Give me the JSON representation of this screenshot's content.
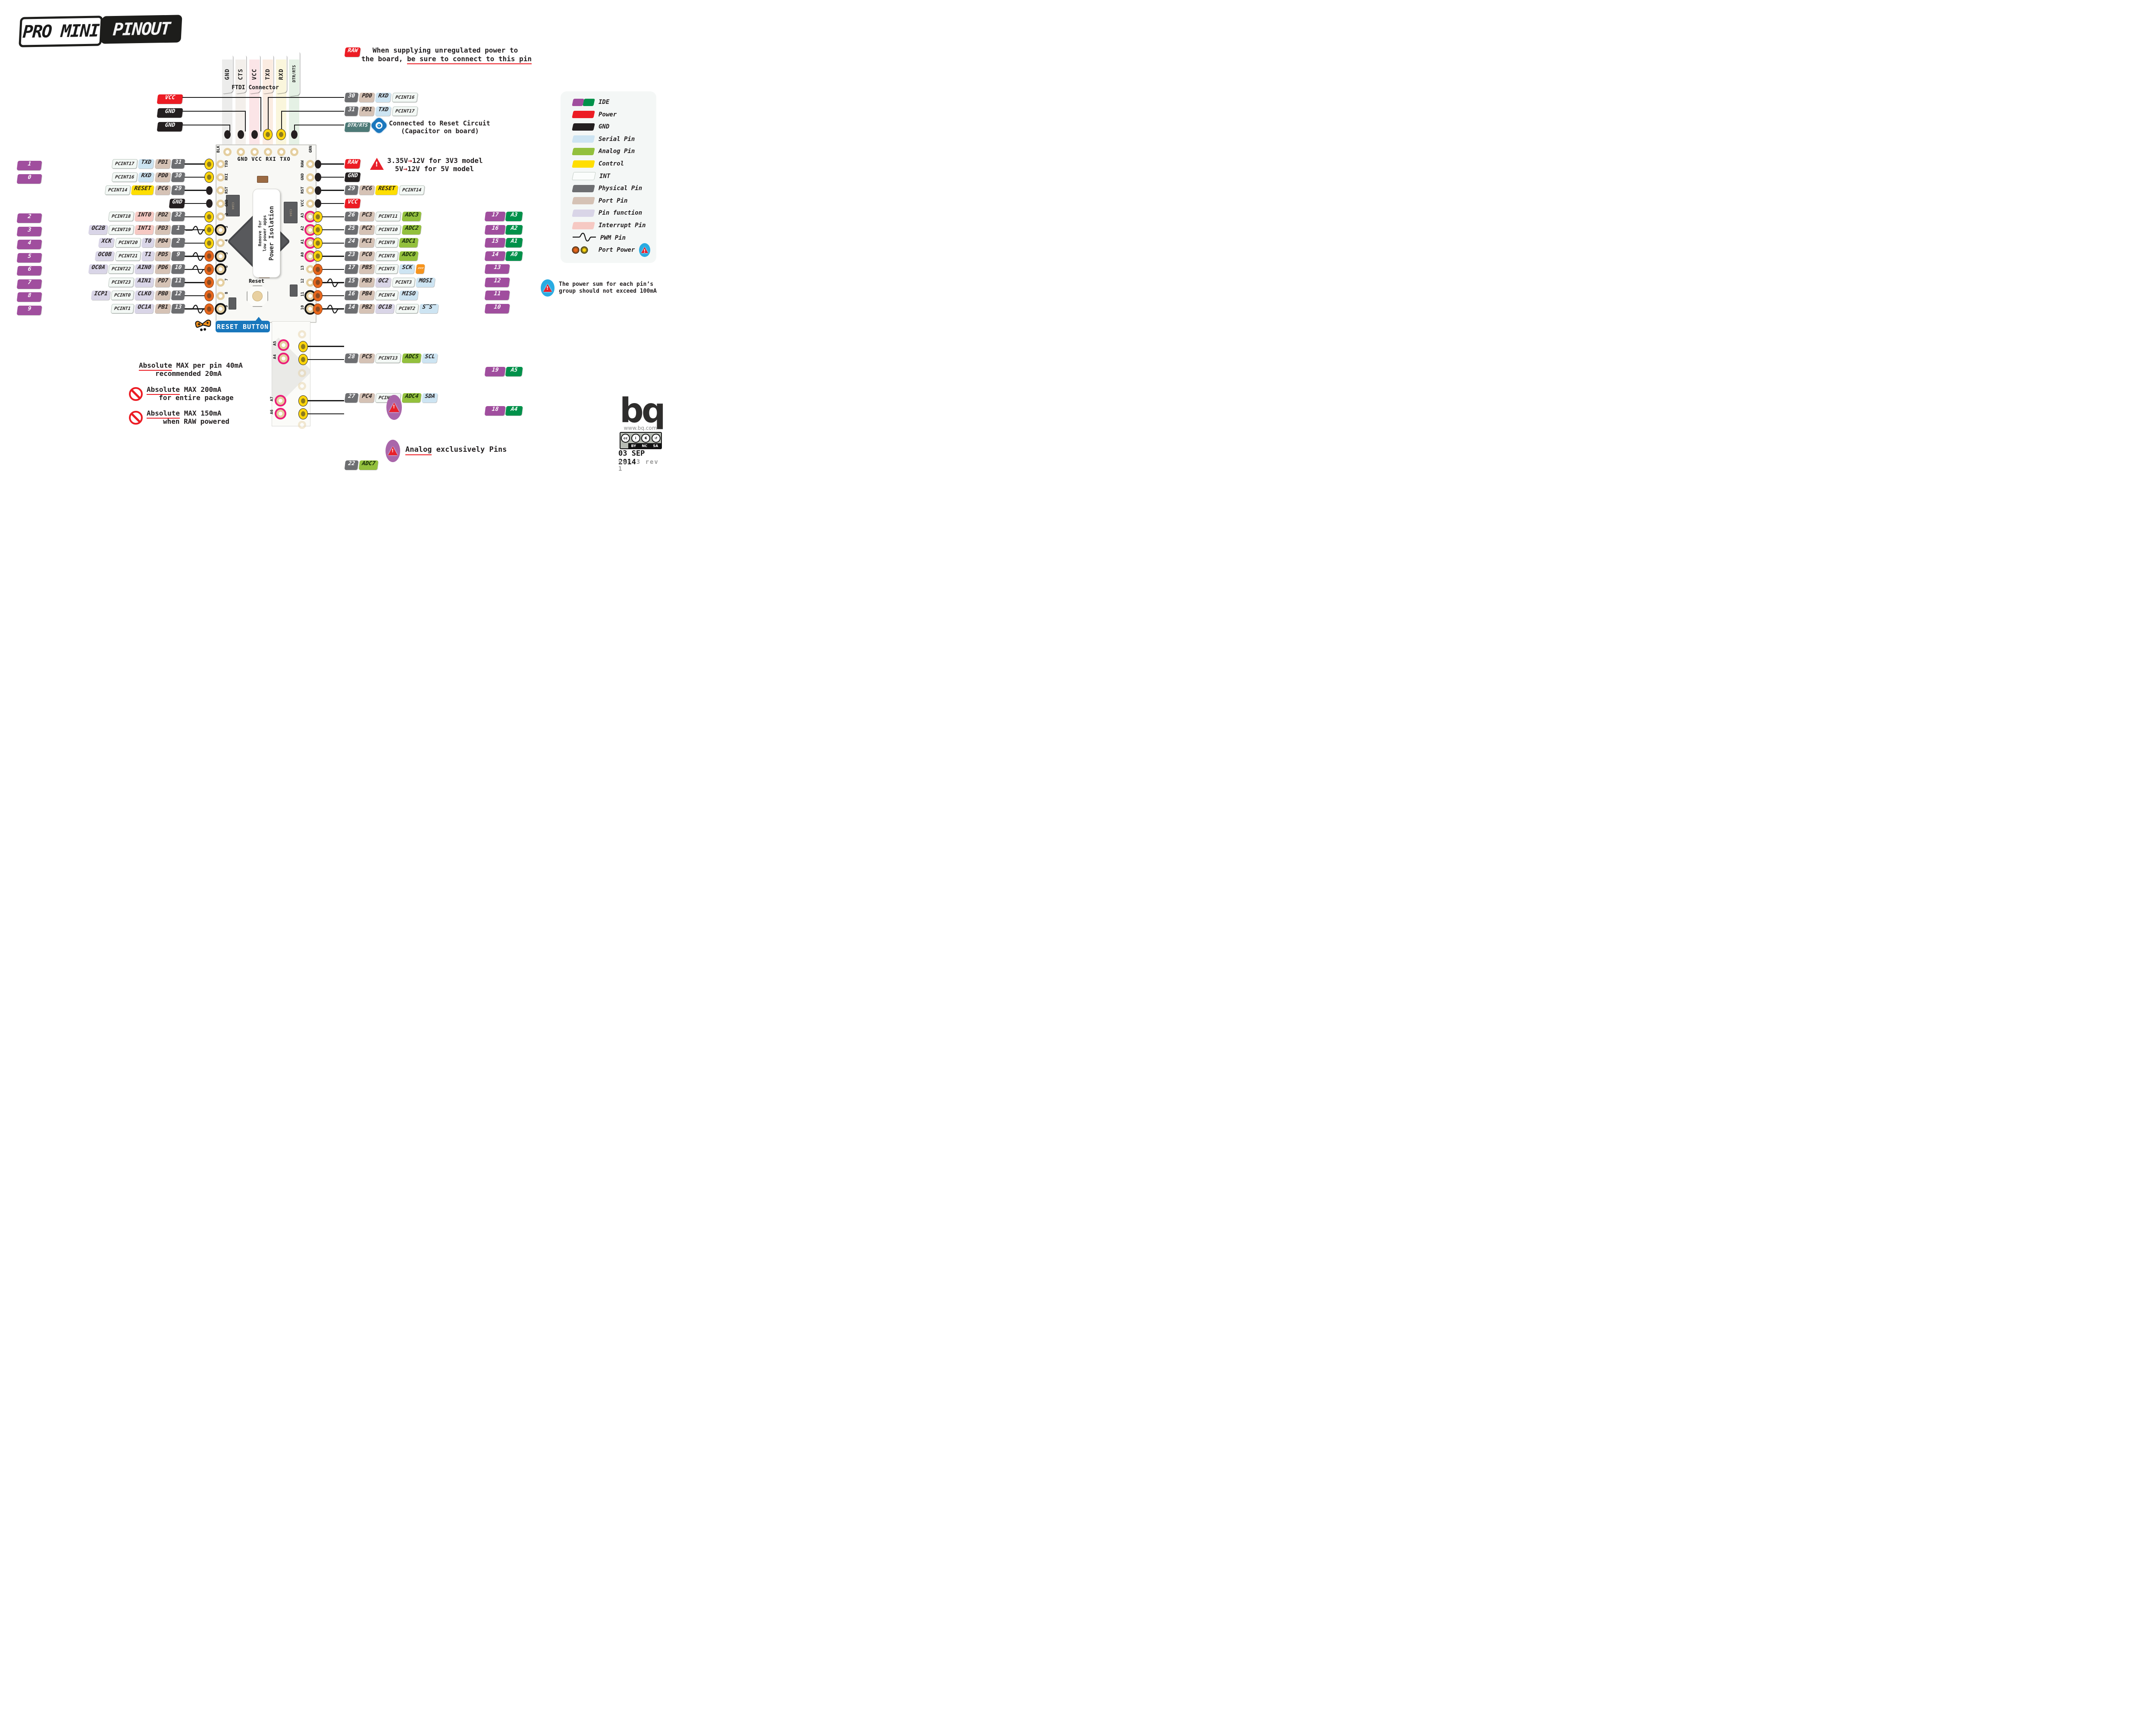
{
  "title": {
    "part1": "PRO MINI",
    "part2": "PINOUT"
  },
  "ftdi": {
    "caption": "FTDI Connector",
    "pins": [
      {
        "label": "GND",
        "type": "gnd"
      },
      {
        "label": "CTS",
        "type": "teal"
      },
      {
        "label": "VCC",
        "type": "power"
      },
      {
        "label": "TXD",
        "type": "serial"
      },
      {
        "label": "RXD",
        "type": "serial"
      },
      {
        "label": "DTR/RTS",
        "type": "teal"
      }
    ]
  },
  "connector_labels": [
    {
      "label": "VCC",
      "type": "power"
    },
    {
      "label": "GND",
      "type": "gnd"
    },
    {
      "label": "GND",
      "type": "gnd"
    }
  ],
  "raw_note": {
    "badge": "RAW",
    "line1": "When supplying unregulated power to",
    "line2a": "the board, ",
    "line2b": "be sure to connect to this pin"
  },
  "top_right_rows": [
    {
      "boxes": [
        {
          "l": "30",
          "t": "phys"
        },
        {
          "l": "PD0",
          "t": "port"
        },
        {
          "l": "RXD",
          "t": "serial"
        },
        {
          "l": "PCINT16",
          "t": "int"
        }
      ]
    },
    {
      "boxes": [
        {
          "l": "31",
          "t": "phys"
        },
        {
          "l": "PD1",
          "t": "port"
        },
        {
          "l": "TXD",
          "t": "serial"
        },
        {
          "l": "PCINT17",
          "t": "int"
        }
      ]
    }
  ],
  "dtr_row": {
    "label": "DTR/RTS",
    "icon": "eye-icon",
    "note1": "Connected to Reset Circuit",
    "note2": "(Capacitor on board)"
  },
  "voltage_note": {
    "l1a": "3.35V",
    "arrow": "→",
    "l1b": "12V for 3V3 model",
    "l2a": "5V",
    "l2b": "12V for  5V model"
  },
  "left_rows": [
    {
      "ide": "1",
      "dot": "yellow",
      "pwm": false,
      "boxes": [
        {
          "l": "PCINT17",
          "t": "int"
        },
        {
          "l": "TXD",
          "t": "serial"
        },
        {
          "l": "PD1",
          "t": "port"
        },
        {
          "l": "31",
          "t": "phys"
        }
      ]
    },
    {
      "ide": "0",
      "dot": "yellow",
      "pwm": false,
      "boxes": [
        {
          "l": "PCINT16",
          "t": "int"
        },
        {
          "l": "RXD",
          "t": "serial"
        },
        {
          "l": "PD0",
          "t": "port"
        },
        {
          "l": "30",
          "t": "phys"
        }
      ]
    },
    {
      "ide": "",
      "dot": "black",
      "pwm": false,
      "boxes": [
        {
          "l": "PCINT14",
          "t": "int"
        },
        {
          "l": "RESET",
          "t": "control"
        },
        {
          "l": "PC6",
          "t": "port"
        },
        {
          "l": "29",
          "t": "phys"
        }
      ]
    },
    {
      "ide": "",
      "dot": "black",
      "pwm": false,
      "boxes": [
        {
          "l": "GND",
          "t": "gnd"
        }
      ]
    },
    {
      "ide": "2",
      "dot": "yellow",
      "pwm": false,
      "boxes": [
        {
          "l": "PCINT18",
          "t": "int"
        },
        {
          "l": "INT0",
          "t": "interrupt"
        },
        {
          "l": "PD2",
          "t": "port"
        },
        {
          "l": "32",
          "t": "phys"
        }
      ]
    },
    {
      "ide": "3",
      "dot": "yellow",
      "pwm": true,
      "boxes": [
        {
          "l": "OC2B",
          "t": "pinfn"
        },
        {
          "l": "PCINT19",
          "t": "int"
        },
        {
          "l": "INT1",
          "t": "interrupt"
        },
        {
          "l": "PD3",
          "t": "port"
        },
        {
          "l": "1",
          "t": "phys"
        }
      ]
    },
    {
      "ide": "4",
      "dot": "yellow",
      "pwm": false,
      "boxes": [
        {
          "l": "XCK",
          "t": "pinfn"
        },
        {
          "l": "PCINT20",
          "t": "int"
        },
        {
          "l": "T0",
          "t": "pinfn"
        },
        {
          "l": "PD4",
          "t": "port"
        },
        {
          "l": "2",
          "t": "phys"
        }
      ]
    },
    {
      "ide": "5",
      "dot": "orange",
      "pwm": true,
      "boxes": [
        {
          "l": "OC0B",
          "t": "pinfn"
        },
        {
          "l": "PCINT21",
          "t": "int"
        },
        {
          "l": "T1",
          "t": "pinfn"
        },
        {
          "l": "PD5",
          "t": "port"
        },
        {
          "l": "9",
          "t": "phys"
        }
      ]
    },
    {
      "ide": "6",
      "dot": "orange",
      "pwm": true,
      "boxes": [
        {
          "l": "OC0A",
          "t": "pinfn"
        },
        {
          "l": "PCINT22",
          "t": "int"
        },
        {
          "l": "AIN0",
          "t": "pinfn"
        },
        {
          "l": "PD6",
          "t": "port"
        },
        {
          "l": "10",
          "t": "phys"
        }
      ]
    },
    {
      "ide": "7",
      "dot": "orange",
      "pwm": false,
      "boxes": [
        {
          "l": "PCINT23",
          "t": "int"
        },
        {
          "l": "AIN1",
          "t": "pinfn"
        },
        {
          "l": "PD7",
          "t": "port"
        },
        {
          "l": "11",
          "t": "phys"
        }
      ]
    },
    {
      "ide": "8",
      "dot": "orange",
      "pwm": false,
      "boxes": [
        {
          "l": "ICP1",
          "t": "pinfn"
        },
        {
          "l": "PCINT0",
          "t": "int"
        },
        {
          "l": "CLKO",
          "t": "pinfn"
        },
        {
          "l": "PB0",
          "t": "port"
        },
        {
          "l": "12",
          "t": "phys"
        }
      ]
    },
    {
      "ide": "9",
      "dot": "orange",
      "pwm": true,
      "boxes": [
        {
          "l": "PCINT1",
          "t": "int"
        },
        {
          "l": "OC1A",
          "t": "pinfn"
        },
        {
          "l": "PB1",
          "t": "port"
        },
        {
          "l": "13",
          "t": "phys"
        }
      ]
    }
  ],
  "right_rows": [
    {
      "dot": "black",
      "pwm": false,
      "boxes": [
        {
          "l": "RAW",
          "t": "power"
        }
      ],
      "tail": []
    },
    {
      "dot": "black",
      "pwm": false,
      "boxes": [
        {
          "l": "GND",
          "t": "gnd"
        }
      ],
      "tail": []
    },
    {
      "dot": "black",
      "pwm": false,
      "boxes": [
        {
          "l": "29",
          "t": "phys"
        },
        {
          "l": "PC6",
          "t": "port"
        },
        {
          "l": "RESET",
          "t": "control"
        },
        {
          "l": "PCINT14",
          "t": "int"
        }
      ],
      "tail": []
    },
    {
      "dot": "black",
      "pwm": false,
      "boxes": [
        {
          "l": "VCC",
          "t": "power"
        }
      ],
      "tail": []
    },
    {
      "dot": "yellow",
      "pwm": false,
      "boxes": [
        {
          "l": "26",
          "t": "phys"
        },
        {
          "l": "PC3",
          "t": "port"
        },
        {
          "l": "PCINT11",
          "t": "int"
        },
        {
          "l": "ADC3",
          "t": "analog"
        }
      ],
      "tail": [
        {
          "l": "17",
          "t": "ide"
        },
        {
          "l": "A3",
          "t": "analogx"
        }
      ]
    },
    {
      "dot": "yellow",
      "pwm": false,
      "boxes": [
        {
          "l": "25",
          "t": "phys"
        },
        {
          "l": "PC2",
          "t": "port"
        },
        {
          "l": "PCINT10",
          "t": "int"
        },
        {
          "l": "ADC2",
          "t": "analog"
        }
      ],
      "tail": [
        {
          "l": "16",
          "t": "ide"
        },
        {
          "l": "A2",
          "t": "analogx"
        }
      ]
    },
    {
      "dot": "yellow",
      "pwm": false,
      "boxes": [
        {
          "l": "24",
          "t": "phys"
        },
        {
          "l": "PC1",
          "t": "port"
        },
        {
          "l": "PCINT9",
          "t": "int"
        },
        {
          "l": "ADC1",
          "t": "analog"
        }
      ],
      "tail": [
        {
          "l": "15",
          "t": "ide"
        },
        {
          "l": "A1",
          "t": "analogx"
        }
      ]
    },
    {
      "dot": "yellow",
      "pwm": false,
      "boxes": [
        {
          "l": "23",
          "t": "phys"
        },
        {
          "l": "PC0",
          "t": "port"
        },
        {
          "l": "PCINT8",
          "t": "int"
        },
        {
          "l": "ADC0",
          "t": "analog"
        }
      ],
      "tail": [
        {
          "l": "14",
          "t": "ide"
        },
        {
          "l": "A0",
          "t": "analogx"
        }
      ]
    },
    {
      "dot": "orange",
      "pwm": false,
      "boxes": [
        {
          "l": "17",
          "t": "phys"
        },
        {
          "l": "PB5",
          "t": "port"
        },
        {
          "l": "PCINT5",
          "t": "int"
        },
        {
          "l": "SCK",
          "t": "serial"
        },
        {
          "l": "",
          "t": "led",
          "icon": "led-arrows"
        }
      ],
      "tail": [
        {
          "l": "13",
          "t": "ide-wide"
        }
      ]
    },
    {
      "dot": "orange",
      "pwm": true,
      "boxes": [
        {
          "l": "15",
          "t": "phys"
        },
        {
          "l": "PB3",
          "t": "port"
        },
        {
          "l": "OC2",
          "t": "pinfn"
        },
        {
          "l": "PCINT3",
          "t": "int"
        },
        {
          "l": "MOSI",
          "t": "serial"
        }
      ],
      "tail": [
        {
          "l": "12",
          "t": "ide-wide"
        }
      ]
    },
    {
      "dot": "orange",
      "pwm": false,
      "boxes": [
        {
          "l": "16",
          "t": "phys"
        },
        {
          "l": "PB4",
          "t": "port"
        },
        {
          "l": "PCINT4",
          "t": "int"
        },
        {
          "l": "MISO",
          "t": "serial"
        }
      ],
      "tail": [
        {
          "l": "11",
          "t": "ide-wide"
        }
      ]
    },
    {
      "dot": "orange",
      "pwm": true,
      "boxes": [
        {
          "l": "14",
          "t": "phys"
        },
        {
          "l": "PB2",
          "t": "port"
        },
        {
          "l": "OC1B",
          "t": "pinfn"
        },
        {
          "l": "PCINT2",
          "t": "int"
        },
        {
          "l": "S̅S̅",
          "t": "serial"
        }
      ],
      "tail": [
        {
          "l": "10",
          "t": "ide-wide"
        }
      ]
    }
  ],
  "bottom_rows": [
    {
      "boxes": [
        {
          "l": "28",
          "t": "phys"
        },
        {
          "l": "PC5",
          "t": "port"
        },
        {
          "l": "PCINT13",
          "t": "int"
        },
        {
          "l": "ADC5",
          "t": "analog"
        },
        {
          "l": "SCL",
          "t": "serial"
        }
      ],
      "tail": [
        {
          "l": "19",
          "t": "ide"
        },
        {
          "l": "A5",
          "t": "analogx"
        }
      ]
    },
    {
      "boxes": [
        {
          "l": "27",
          "t": "phys"
        },
        {
          "l": "PC4",
          "t": "port"
        },
        {
          "l": "PCINT12",
          "t": "int"
        },
        {
          "l": "ADC4",
          "t": "analog"
        },
        {
          "l": "SDA",
          "t": "serial"
        }
      ],
      "tail": [
        {
          "l": "18",
          "t": "ide"
        },
        {
          "l": "A4",
          "t": "analogx"
        }
      ]
    },
    {
      "boxes": [
        {
          "l": "22",
          "t": "phys"
        },
        {
          "l": "ADC7",
          "t": "analog"
        }
      ],
      "tail": [
        {
          "l": "A7",
          "t": "analogx-wide"
        }
      ]
    },
    {
      "boxes": [
        {
          "l": "19",
          "t": "phys"
        },
        {
          "l": "ADC6",
          "t": "analog"
        }
      ],
      "tail": [
        {
          "l": "A6",
          "t": "analogx-wide"
        }
      ]
    }
  ],
  "legend": {
    "items": [
      {
        "sw": "ide-dual",
        "label": "IDE"
      },
      {
        "sw": "power",
        "label": "Power"
      },
      {
        "sw": "gnd",
        "label": "GND"
      },
      {
        "sw": "serial",
        "label": "Serial Pin"
      },
      {
        "sw": "analog",
        "label": "Analog Pin"
      },
      {
        "sw": "control",
        "label": "Control"
      },
      {
        "sw": "int",
        "label": "INT"
      },
      {
        "sw": "phys",
        "label": "Physical Pin"
      },
      {
        "sw": "port",
        "label": "Port Pin"
      },
      {
        "sw": "pinfn",
        "label": "Pin function"
      },
      {
        "sw": "interrupt",
        "label": "Interrupt Pin"
      },
      {
        "sw": "pwm",
        "label": "PWM Pin"
      },
      {
        "sw": "portpower",
        "label": "Port Power"
      }
    ]
  },
  "legend_note": {
    "line1": "The power sum for each pin’s",
    "line2": "group should not exceed 100mA"
  },
  "warnings": [
    {
      "icon": "triangle",
      "u": "Absolute",
      "rest": " MAX per pin 40mA",
      "line2": "recommended 20mA"
    },
    {
      "icon": "noentry",
      "u": "Absolute",
      "rest": " MAX 200mA",
      "line2": "for entire package"
    },
    {
      "icon": "noentry",
      "u": "Absolute",
      "rest": " MAX 150mA",
      "line2": "when RAW powered"
    }
  ],
  "analog_note": {
    "word": "Analog",
    "rest": " exclusively Pins"
  },
  "board": {
    "top_label_left": "BLK",
    "top_label_right": "GRN",
    "silk_top": "GND VCC RXI TXO",
    "left_edge": [
      "TXO",
      "RXI",
      "RST",
      "GND",
      "2",
      "3",
      "4",
      "5",
      "6",
      "7",
      "8",
      "9"
    ],
    "right_edge": [
      "RAW",
      "GND",
      "RST",
      "VCC",
      "A3",
      "A2",
      "A1",
      "A0",
      "13",
      "12",
      "11",
      "10"
    ],
    "callout_line1": "Power Isolation",
    "callout_line2": "Remove for",
    "callout_line3": "low power apps",
    "reset_silk": "Reset",
    "reset_label": "RESET BUTTON",
    "ext_labels": [
      "A5",
      "A4",
      "A7",
      "A6"
    ],
    "comp_labels": [
      "C104",
      "1412",
      "C104",
      "1412"
    ]
  },
  "footer": {
    "logo": "bq",
    "url": "www.bq.com",
    "cc": "cc",
    "cc_terms": [
      "BY",
      "NC",
      "SA"
    ],
    "date": "03 SEP 2014",
    "version": "ver 3 rev 1"
  },
  "colors": {
    "ide_purple": "#a04e9e",
    "ide_green": "#00914a",
    "power_red": "#ec1c24",
    "gnd_black": "#241f20",
    "serial_blue": "#cde4f2",
    "analog_green": "#93c03d",
    "control_yellow": "#ffde00",
    "physical_gray": "#6d6e71",
    "port_tan": "#d5c2b5",
    "pinfn_lavender": "#d9d5e7",
    "interrupt_pink": "#f6c9c3",
    "teal": "#4d7a77",
    "pink_ring": "#ec1e79",
    "blue_accent": "#1977bc",
    "orange_pad": "#e8671c",
    "yellow_pad": "#ffd60c"
  }
}
